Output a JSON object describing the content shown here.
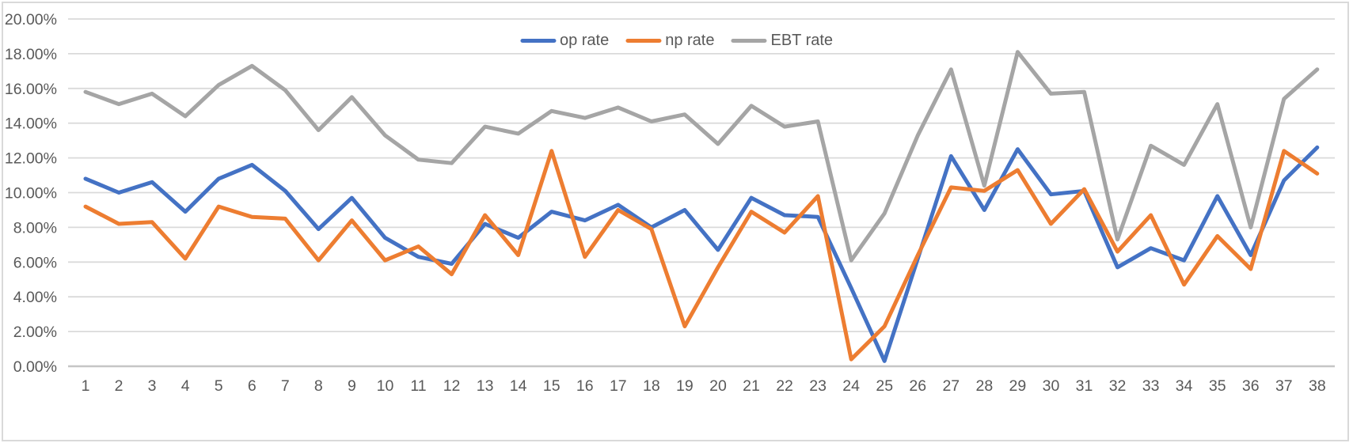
{
  "chart": {
    "background": "#FFFFFF",
    "border_color": "#D9D9D9",
    "text_color": "#595959",
    "gridline_color": "#DADADA",
    "axis_line_color": "#C6C6C6",
    "legend": [
      {
        "label": "op rate",
        "color": "#4472C4"
      },
      {
        "label": "np rate",
        "color": "#ED7D31"
      },
      {
        "label": "EBT rate",
        "color": "#A5A5A5"
      }
    ],
    "y_axis_ticks": [
      "0.00%",
      "2.00%",
      "4.00%",
      "6.00%",
      "8.00%",
      "10.00%",
      "12.00%",
      "14.00%",
      "16.00%",
      "18.00%",
      "20.00%"
    ]
  },
  "chart_data": {
    "type": "line",
    "title": "",
    "xlabel": "",
    "ylabel": "",
    "ylim": [
      0,
      20
    ],
    "grid": true,
    "legend_position": "top-center",
    "y_tick_format": "0.00%",
    "categories": [
      1,
      2,
      3,
      4,
      5,
      6,
      7,
      8,
      9,
      10,
      11,
      12,
      13,
      14,
      15,
      16,
      17,
      18,
      19,
      20,
      21,
      22,
      23,
      24,
      25,
      26,
      27,
      28,
      29,
      30,
      31,
      32,
      33,
      34,
      35,
      36,
      37,
      38
    ],
    "series": [
      {
        "name": "op rate",
        "color": "#4472C4",
        "values": [
          10.8,
          10.0,
          10.6,
          8.9,
          10.8,
          11.6,
          10.1,
          7.9,
          9.7,
          7.4,
          6.3,
          5.9,
          8.2,
          7.4,
          8.9,
          8.4,
          9.3,
          8.0,
          9.0,
          6.7,
          9.7,
          8.7,
          8.6,
          4.5,
          0.3,
          6.2,
          12.1,
          9.0,
          12.5,
          9.9,
          10.1,
          5.7,
          6.8,
          6.1,
          9.8,
          6.4,
          10.7,
          12.6
        ]
      },
      {
        "name": "np rate",
        "color": "#ED7D31",
        "values": [
          9.2,
          8.2,
          8.3,
          6.2,
          9.2,
          8.6,
          8.5,
          6.1,
          8.4,
          6.1,
          6.9,
          5.3,
          8.7,
          6.4,
          12.4,
          6.3,
          9.0,
          7.9,
          2.3,
          5.7,
          8.9,
          7.7,
          9.8,
          0.4,
          2.3,
          6.4,
          10.3,
          10.1,
          11.3,
          8.2,
          10.2,
          6.6,
          8.7,
          4.7,
          7.5,
          5.6,
          12.4,
          11.1
        ]
      },
      {
        "name": "EBT rate",
        "color": "#A5A5A5",
        "values": [
          15.8,
          15.1,
          15.7,
          14.4,
          16.2,
          17.3,
          15.9,
          13.6,
          15.5,
          13.3,
          11.9,
          11.7,
          13.8,
          13.4,
          14.7,
          14.3,
          14.9,
          14.1,
          14.5,
          12.8,
          15.0,
          13.8,
          14.1,
          6.1,
          8.8,
          13.3,
          17.1,
          10.4,
          18.1,
          15.7,
          15.8,
          7.3,
          12.7,
          11.6,
          15.1,
          8.0,
          15.4,
          17.1
        ]
      }
    ]
  }
}
